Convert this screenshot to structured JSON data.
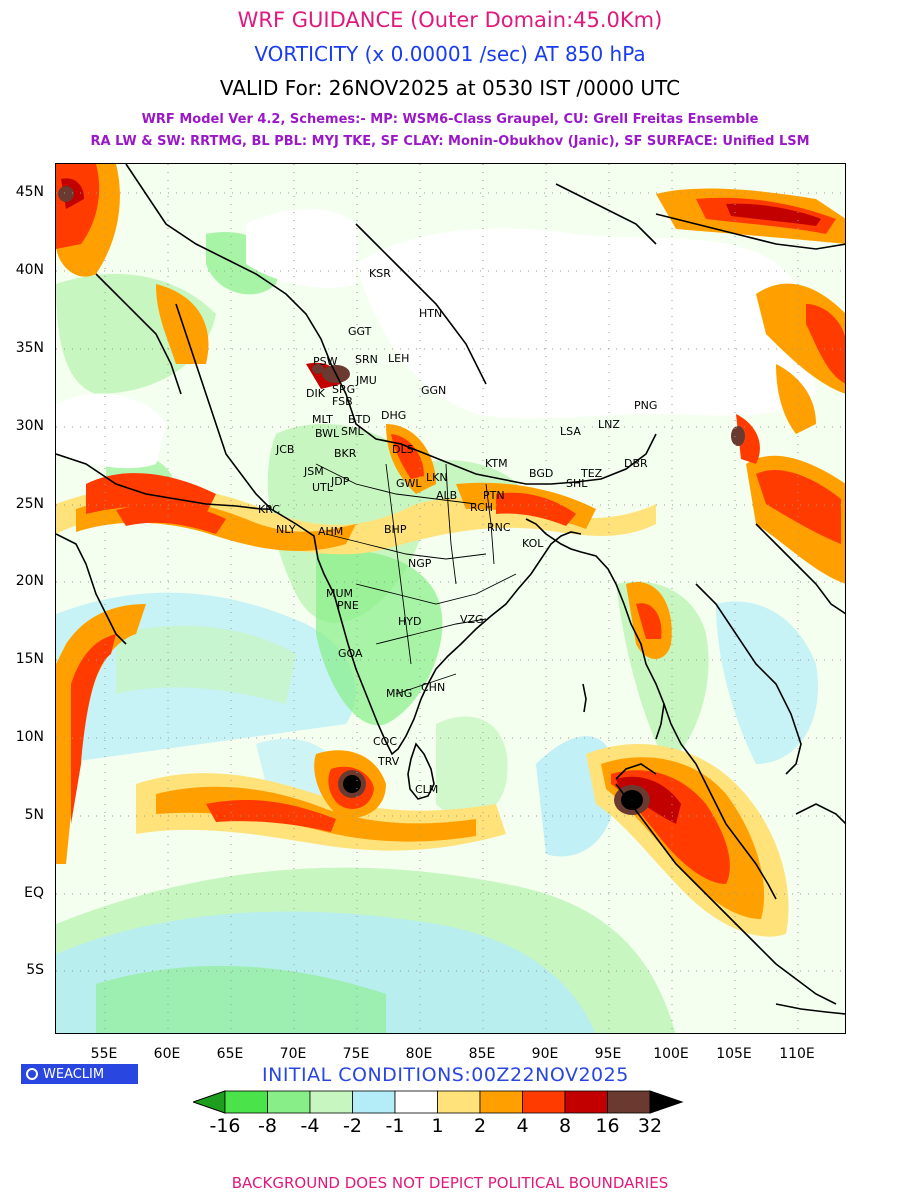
{
  "titles": {
    "line1": "WRF GUIDANCE (Outer Domain:45.0Km)",
    "line2": "VORTICITY (x 0.00001 /sec) AT 850 hPa",
    "line3": "VALID For: 26NOV2025 at 0530 IST /0000 UTC",
    "line4": "WRF Model Ver 4.2, Schemes:- MP: WSM6-Class Graupel, CU: Grell Freitas Ensemble",
    "line5": "RA LW & SW: RRTMG, BL PBL: MYJ TKE, SF CLAY: Monin-Obukhov (Janic), SF SURFACE: Unified LSM"
  },
  "axes": {
    "lat_labels": [
      "45N",
      "40N",
      "35N",
      "30N",
      "25N",
      "20N",
      "15N",
      "10N",
      "5N",
      "EQ",
      "5S"
    ],
    "lon_labels": [
      "55E",
      "60E",
      "65E",
      "70E",
      "75E",
      "80E",
      "85E",
      "90E",
      "95E",
      "100E",
      "105E",
      "110E"
    ]
  },
  "cities": [
    "KSR",
    "HTN",
    "GGT",
    "PSW",
    "SRN",
    "LEH",
    "DIK",
    "SRG",
    "JMU",
    "GGN",
    "FSB",
    "MLT",
    "BTD",
    "DHG",
    "BWL",
    "SML",
    "JCB",
    "BKR",
    "DLS",
    "LSA",
    "LNZ",
    "PNG",
    "KTM",
    "JSM",
    "UTL",
    "JDP",
    "LKN",
    "GWL",
    "ALB",
    "PTN",
    "DBR",
    "BGD",
    "TEZ",
    "SHL",
    "KRC",
    "NLY",
    "AHM",
    "BHP",
    "RCH",
    "RNC",
    "KOL",
    "NGP",
    "MUM",
    "PNE",
    "HYD",
    "VZG",
    "GOA",
    "MNG",
    "CHN",
    "COC",
    "TRV",
    "CLM"
  ],
  "logo": "WEACLIM",
  "initial_conditions": "INITIAL CONDITIONS:00Z22NOV2025",
  "colorbar": {
    "labels": [
      "-16",
      "-8",
      "-4",
      "-2",
      "-1",
      "1",
      "2",
      "4",
      "8",
      "16",
      "32"
    ],
    "colors": [
      "#1e9e1e",
      "#4ae34a",
      "#88ef88",
      "#c8f6c0",
      "#b4ecf8",
      "#ffffff",
      "#ffe27a",
      "#ffa000",
      "#ff3b00",
      "#c20000",
      "#6a3a30",
      "#000000"
    ]
  },
  "footer": "BACKGROUND DOES NOT DEPICT POLITICAL BOUNDARIES"
}
